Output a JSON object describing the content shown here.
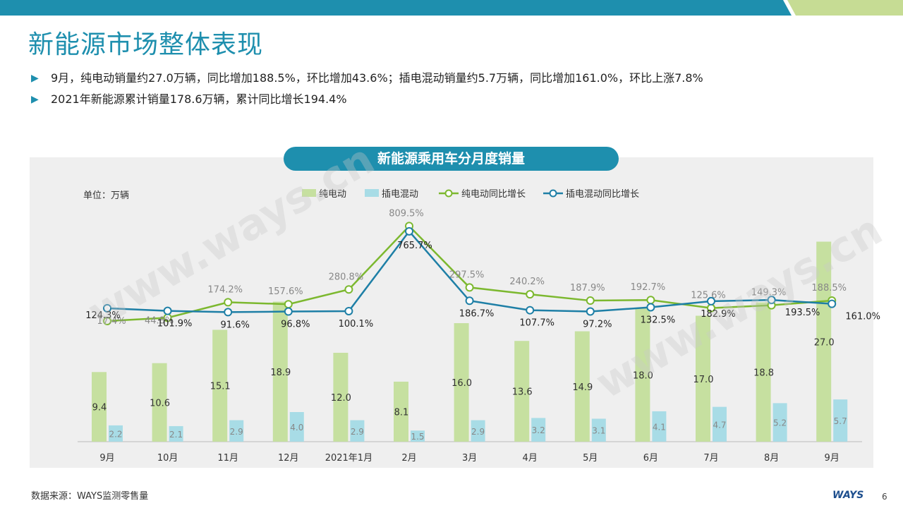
{
  "header": {
    "title": "新能源市场整体表现",
    "bullets": [
      "9月，纯电动销量约27.0万辆，同比增加188.5%，环比增加43.6%；插电混动销量约5.7万辆，同比增加161.0%，环比上涨7.8%",
      "2021年新能源累计销量178.6万辆，累计同比增长194.4%"
    ]
  },
  "footer": {
    "source": "数据来源：WAYS监测零售量",
    "logo": "WAYS",
    "page": "6"
  },
  "watermark": "www.ways.cn",
  "colors": {
    "accent": "#1e8fae",
    "bev_bar": "#c6e0a0",
    "phev_bar": "#a8dce6",
    "bev_line": "#7cb82f",
    "phev_line": "#1e7fa6"
  },
  "chart_data": {
    "type": "bar",
    "title": "新能源乘用车分月度销量",
    "unit_label": "单位：万辆",
    "categories": [
      "9月",
      "10月",
      "11月",
      "12月",
      "2021年1月",
      "2月",
      "3月",
      "4月",
      "5月",
      "6月",
      "7月",
      "8月",
      "9月"
    ],
    "series": [
      {
        "name": "纯电动",
        "type": "bar",
        "values": [
          9.4,
          10.6,
          15.1,
          18.9,
          12.0,
          8.1,
          16.0,
          13.6,
          14.9,
          18.0,
          17.0,
          18.8,
          27.0
        ]
      },
      {
        "name": "插电混动",
        "type": "bar",
        "values": [
          2.2,
          2.1,
          2.9,
          4.0,
          2.9,
          1.5,
          2.9,
          3.2,
          3.1,
          4.1,
          4.7,
          5.2,
          5.7
        ]
      },
      {
        "name": "纯电动同比增长",
        "type": "line",
        "values": [
          17.4,
          44.8,
          174.2,
          157.6,
          280.8,
          809.5,
          297.5,
          240.2,
          187.9,
          192.7,
          125.6,
          149.3,
          188.5
        ]
      },
      {
        "name": "插电混动同比增长",
        "type": "line",
        "values": [
          124.3,
          101.9,
          91.6,
          96.8,
          100.1,
          765.7,
          186.7,
          107.7,
          97.2,
          132.5,
          182.9,
          193.5,
          161.0
        ]
      }
    ]
  }
}
